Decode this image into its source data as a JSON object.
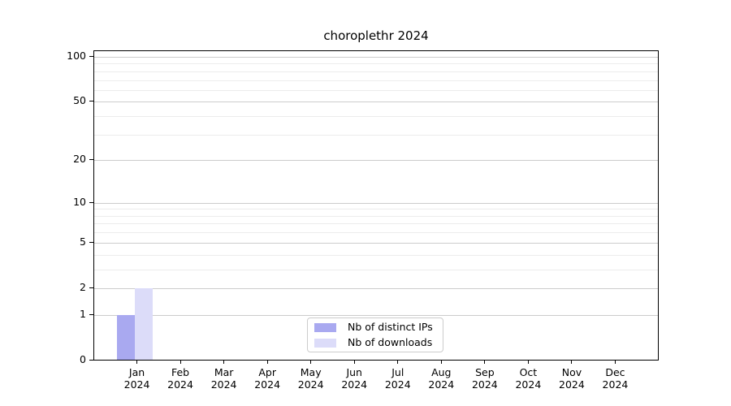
{
  "chart_data": {
    "type": "bar",
    "title": "choroplethr 2024",
    "categories": [
      "Jan",
      "Feb",
      "Mar",
      "Apr",
      "May",
      "Jun",
      "Jul",
      "Aug",
      "Sep",
      "Oct",
      "Nov",
      "Dec"
    ],
    "x_year": "2024",
    "series": [
      {
        "name": "Nb of distinct IPs",
        "color": "#a9a9f0",
        "values": [
          1,
          0,
          0,
          0,
          0,
          0,
          0,
          0,
          0,
          0,
          0,
          0
        ]
      },
      {
        "name": "Nb of downloads",
        "color": "#dcdcf9",
        "values": [
          2,
          0,
          0,
          0,
          0,
          0,
          0,
          0,
          0,
          0,
          0,
          0
        ]
      }
    ],
    "xlabel": "",
    "ylabel": "",
    "yscale": "log1p",
    "ylim": [
      0,
      110
    ],
    "y_major_ticks": [
      0,
      1,
      2,
      5,
      10,
      20,
      50,
      100
    ],
    "y_minor_gridlines": [
      3,
      4,
      6,
      7,
      8,
      9,
      30,
      40,
      60,
      70,
      80,
      90
    ],
    "grid": true,
    "legend_position": "lower center"
  }
}
